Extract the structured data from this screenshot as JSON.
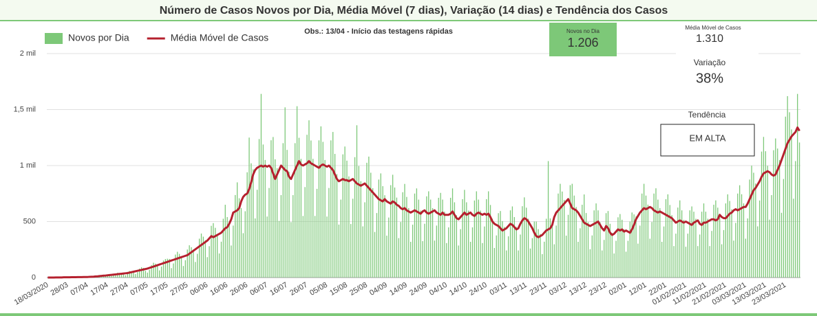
{
  "chart_data": {
    "type": "bar",
    "title": "Número de Casos Novos por Dia, Média Móvel (7 dias), Variação (14 dias) e Tendência dos Casos",
    "annotation": "Obs.: 13/04 - Início das testagens rápidas",
    "ylim": [
      0,
      2000
    ],
    "yticks": [
      0,
      500,
      {
        "value": 1000,
        "label": "1 mil"
      },
      {
        "value": 1500,
        "label": "1,5 mil"
      },
      {
        "value": 2000,
        "label": "2 mil"
      }
    ],
    "grid": true,
    "legend": "top-left",
    "categories": [
      "18/03/2020",
      null,
      null,
      null,
      null,
      null,
      null,
      null,
      null,
      null,
      "28/03",
      null,
      null,
      null,
      null,
      null,
      null,
      null,
      null,
      null,
      "07/04",
      null,
      null,
      null,
      null,
      null,
      null,
      null,
      null,
      null,
      "17/04",
      null,
      null,
      null,
      null,
      null,
      null,
      null,
      null,
      null,
      "27/04",
      null,
      null,
      null,
      null,
      null,
      null,
      null,
      null,
      null,
      "07/05",
      null,
      null,
      null,
      null,
      null,
      null,
      null,
      null,
      null,
      "17/05",
      null,
      null,
      null,
      null,
      null,
      null,
      null,
      null,
      null,
      "27/05",
      null,
      null,
      null,
      null,
      null,
      null,
      null,
      null,
      null,
      "06/06",
      null,
      null,
      null,
      null,
      null,
      null,
      null,
      null,
      null,
      "16/06",
      null,
      null,
      null,
      null,
      null,
      null,
      null,
      null,
      null,
      "26/06",
      null,
      null,
      null,
      null,
      null,
      null,
      null,
      null,
      null,
      "06/07",
      null,
      null,
      null,
      null,
      null,
      null,
      null,
      null,
      null,
      "16/07",
      null,
      null,
      null,
      null,
      null,
      null,
      null,
      null,
      null,
      "26/07",
      null,
      null,
      null,
      null,
      null,
      null,
      null,
      null,
      null,
      "05/08",
      null,
      null,
      null,
      null,
      null,
      null,
      null,
      null,
      null,
      "15/08",
      null,
      null,
      null,
      null,
      null,
      null,
      null,
      null,
      null,
      "25/08",
      null,
      null,
      null,
      null,
      null,
      null,
      null,
      null,
      null,
      "04/09",
      null,
      null,
      null,
      null,
      null,
      null,
      null,
      null,
      null,
      "14/09",
      null,
      null,
      null,
      null,
      null,
      null,
      null,
      null,
      null,
      "24/09",
      null,
      null,
      null,
      null,
      null,
      null,
      null,
      null,
      null,
      "04/10",
      null,
      null,
      null,
      null,
      null,
      null,
      null,
      null,
      null,
      "14/10",
      null,
      null,
      null,
      null,
      null,
      null,
      null,
      null,
      null,
      "24/10",
      null,
      null,
      null,
      null,
      null,
      null,
      null,
      null,
      null,
      "03/11",
      null,
      null,
      null,
      null,
      null,
      null,
      null,
      null,
      null,
      "13/11",
      null,
      null,
      null,
      null,
      null,
      null,
      null,
      null,
      null,
      "23/11",
      null,
      null,
      null,
      null,
      null,
      null,
      null,
      null,
      null,
      "03/12",
      null,
      null,
      null,
      null,
      null,
      null,
      null,
      null,
      null,
      "13/12",
      null,
      null,
      null,
      null,
      null,
      null,
      null,
      null,
      null,
      "23/12",
      null,
      null,
      null,
      null,
      null,
      null,
      null,
      null,
      null,
      "02/01",
      null,
      null,
      null,
      null,
      null,
      null,
      null,
      null,
      null,
      "12/01",
      null,
      null,
      null,
      null,
      null,
      null,
      null,
      null,
      null,
      "22/01",
      null,
      null,
      null,
      null,
      null,
      null,
      null,
      null,
      null,
      "01/02/2021",
      null,
      null,
      null,
      null,
      null,
      null,
      null,
      null,
      null,
      "11/02/2021",
      null,
      null,
      null,
      null,
      null,
      null,
      null,
      null,
      null,
      "21/02/2021",
      null,
      null,
      null,
      null,
      null,
      null,
      null,
      null,
      null,
      "03/03/2021",
      null,
      null,
      null,
      null,
      null,
      null,
      null,
      null,
      null,
      "13/03/2021",
      null,
      null,
      null,
      null,
      null,
      null,
      null,
      null,
      null,
      "23/03/2021",
      null,
      null,
      null,
      null,
      null,
      null,
      null
    ],
    "series": [
      {
        "name": "Novos por Dia",
        "type": "bar",
        "color": "#7dc878",
        "values": [
          0,
          0,
          1,
          0,
          1,
          0,
          1,
          2,
          3,
          1,
          2,
          3,
          4,
          2,
          3,
          4,
          5,
          3,
          7,
          6,
          4,
          8,
          9,
          8,
          12,
          14,
          9,
          19,
          20,
          17,
          24,
          23,
          14,
          21,
          35,
          43,
          38,
          36,
          29,
          21,
          50,
          59,
          58,
          55,
          31,
          48,
          80,
          92,
          86,
          60,
          44,
          69,
          110,
          132,
          124,
          103,
          64,
          98,
          152,
          165,
          168,
          166,
          84,
          126,
          205,
          230,
          211,
          180,
          103,
          155,
          250,
          288,
          271,
          251,
          139,
          212,
          347,
          393,
          365,
          333,
          182,
          280,
          462,
          486,
          444,
          378,
          215,
          320,
          525,
          650,
          540,
          504,
          286,
          464,
          737,
          850,
          708,
          620,
          396,
          592,
          940,
          1250,
          1020,
          966,
          528,
          784,
          1237,
          1640,
          1188,
          1050,
          545,
          800,
          1226,
          1255,
          1056,
          977,
          506,
          736,
          1200,
          1520,
          1140,
          945,
          495,
          736,
          1200,
          1530,
          1248,
          1060,
          550,
          808,
          1275,
          1404,
          1224,
          1060,
          550,
          792,
          1225,
          1350,
          1212,
          1050,
          545,
          800,
          1225,
          1300,
          1104,
          924,
          473,
          696,
          1100,
          1170,
          1044,
          903,
          478,
          704,
          1075,
          1360,
          996,
          861,
          457,
          672,
          1025,
          1080,
          936,
          798,
          407,
          576,
          875,
          930,
          816,
          735,
          374,
          536,
          825,
          918,
          804,
          714,
          352,
          496,
          762,
          836,
          720,
          620,
          319,
          472,
          750,
          796,
          696,
          598,
          325,
          480,
          725,
          770,
          696,
          620,
          330,
          464,
          712,
          756,
          696,
          588,
          308,
          448,
          712,
          796,
          672,
          556,
          286,
          432,
          700,
          783,
          672,
          598,
          319,
          448,
          688,
          770,
          696,
          598,
          308,
          456,
          700,
          770,
          648,
          525,
          264,
          376,
          575,
          594,
          504,
          452,
          242,
          368,
          600,
          635,
          540,
          452,
          242,
          384,
          637,
          716,
          624,
          525,
          259,
          352,
          500,
          500,
          432,
          389,
          209,
          320,
          525,
          1040,
          528,
          494,
          297,
          464,
          750,
          837,
          768,
          693,
          374,
          560,
          825,
          837,
          732,
          630,
          319,
          440,
          650,
          742,
          576,
          494,
          253,
          376,
          600,
          662,
          600,
          494,
          242,
          336,
          575,
          594,
          480,
          399,
          215,
          328,
          538,
          567,
          516,
          431,
          231,
          328,
          500,
          581,
          564,
          546,
          303,
          464,
          750,
          837,
          732,
          651,
          347,
          496,
          750,
          797,
          696,
          620,
          319,
          456,
          700,
          743,
          648,
          557,
          281,
          392,
          625,
          689,
          600,
          515,
          275,
          392,
          600,
          635,
          588,
          525,
          281,
          384,
          588,
          662,
          588,
          525,
          281,
          416,
          650,
          689,
          624,
          536,
          297,
          424,
          662,
          743,
          684,
          609,
          330,
          488,
          750,
          824,
          744,
          662,
          347,
          528,
          875,
          999,
          936,
          840,
          457,
          688,
          1125,
          1256,
          1128,
          998,
          517,
          736,
          1137,
          1242,
          1152,
          1050,
          578,
          880,
          1437,
          1620,
          1476,
          1323,
          704,
          1040,
          1640,
          1206
        ]
      },
      {
        "name": "Média Móvel de Casos",
        "type": "line",
        "color": "#b5202e",
        "values": [
          0,
          0,
          0,
          0,
          1,
          1,
          1,
          1,
          2,
          2,
          2,
          2,
          3,
          3,
          3,
          4,
          4,
          4,
          5,
          5,
          5,
          6,
          7,
          8,
          10,
          11,
          13,
          15,
          17,
          18,
          20,
          22,
          24,
          26,
          28,
          30,
          32,
          34,
          36,
          38,
          40,
          44,
          48,
          52,
          56,
          60,
          64,
          68,
          72,
          76,
          80,
          86,
          92,
          98,
          104,
          110,
          116,
          122,
          128,
          134,
          140,
          146,
          152,
          158,
          164,
          170,
          176,
          182,
          188,
          194,
          200,
          213,
          226,
          239,
          252,
          265,
          278,
          291,
          304,
          317,
          330,
          350,
          370,
          360,
          370,
          380,
          390,
          400,
          420,
          440,
          450,
          480,
          520,
          580,
          590,
          600,
          620,
          680,
          720,
          740,
          750,
          790,
          850,
          920,
          960,
          980,
          990,
          1000,
          990,
          1000,
          990,
          1000,
          980,
          930,
          880,
          920,
          960,
          1000,
          980,
          960,
          950,
          900,
          880,
          920,
          960,
          1000,
          1040,
          1010,
          1000,
          1010,
          1020,
          1040,
          1020,
          1010,
          1000,
          990,
          980,
          1000,
          1010,
          1000,
          990,
          1000,
          980,
          960,
          920,
          880,
          860,
          870,
          880,
          870,
          870,
          860,
          870,
          880,
          860,
          840,
          830,
          820,
          830,
          840,
          820,
          800,
          780,
          760,
          740,
          720,
          700,
          690,
          680,
          700,
          680,
          670,
          660,
          680,
          670,
          650,
          640,
          620,
          610,
          620,
          600,
          590,
          580,
          590,
          600,
          590,
          580,
          570,
          590,
          600,
          580,
          570,
          580,
          590,
          600,
          580,
          570,
          560,
          580,
          560,
          560,
          560,
          570,
          590,
          560,
          530,
          520,
          540,
          560,
          580,
          560,
          570,
          580,
          560,
          550,
          570,
          580,
          570,
          560,
          570,
          560,
          570,
          540,
          500,
          480,
          470,
          460,
          440,
          420,
          430,
          440,
          460,
          480,
          470,
          450,
          430,
          440,
          480,
          510,
          530,
          520,
          500,
          470,
          440,
          400,
          370,
          360,
          370,
          380,
          400,
          420,
          430,
          440,
          470,
          540,
          580,
          600,
          620,
          640,
          660,
          680,
          700,
          660,
          620,
          610,
          600,
          580,
          550,
          520,
          490,
          480,
          470,
          460,
          470,
          480,
          490,
          500,
          470,
          440,
          420,
          460,
          440,
          400,
          380,
          390,
          410,
          430,
          420,
          430,
          410,
          420,
          410,
          400,
          430,
          470,
          520,
          550,
          580,
          600,
          620,
          610,
          620,
          630,
          620,
          600,
          590,
          580,
          590,
          580,
          570,
          560,
          550,
          540,
          530,
          510,
          490,
          500,
          510,
          500,
          490,
          500,
          490,
          480,
          470,
          490,
          500,
          510,
          480,
          470,
          490,
          490,
          500,
          510,
          520,
          520,
          510,
          520,
          560,
          540,
          530,
          530,
          550,
          570,
          580,
          600,
          610,
          600,
          610,
          620,
          630,
          630,
          660,
          700,
          740,
          780,
          800,
          830,
          860,
          900,
          930,
          940,
          950,
          940,
          920,
          910,
          920,
          960,
          1000,
          1050,
          1100,
          1150,
          1200,
          1230,
          1260,
          1280,
          1300,
          1340,
          1310
        ]
      }
    ]
  },
  "cards": {
    "new_today": {
      "title": "Novos no Dia",
      "value": "1.206"
    },
    "moving_average": {
      "title": "Média Móvel de Casos",
      "value": "1.310"
    },
    "variation": {
      "title": "Variação",
      "value": "38%"
    },
    "trend": {
      "title": "Tendência",
      "value": "EM ALTA"
    }
  }
}
